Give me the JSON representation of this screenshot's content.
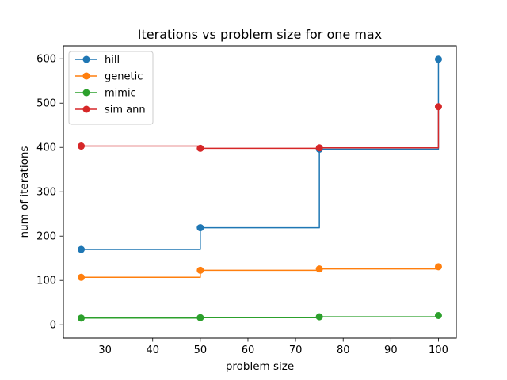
{
  "chart_data": {
    "type": "line",
    "drawstyle": "steps-post",
    "title": "Iterations vs problem size for one max",
    "xlabel": "problem size",
    "ylabel": "num of iterations",
    "xlim": [
      21.25,
      103.75
    ],
    "ylim": [
      -30,
      629
    ],
    "xticks": [
      30,
      40,
      50,
      60,
      70,
      80,
      90,
      100
    ],
    "yticks": [
      0,
      100,
      200,
      300,
      400,
      500,
      600
    ],
    "grid": false,
    "legend_position": "upper-left",
    "x": [
      25,
      50,
      75,
      100
    ],
    "series": [
      {
        "name": "hill",
        "color": "#1f77b4",
        "values": [
          170,
          219,
          396,
          599
        ]
      },
      {
        "name": "genetic",
        "color": "#ff7f0e",
        "values": [
          107,
          123,
          126,
          131
        ]
      },
      {
        "name": "mimic",
        "color": "#2ca02c",
        "values": [
          15,
          16,
          18,
          21
        ]
      },
      {
        "name": "sim ann",
        "color": "#d62728",
        "values": [
          403,
          398,
          399,
          492
        ]
      }
    ]
  }
}
